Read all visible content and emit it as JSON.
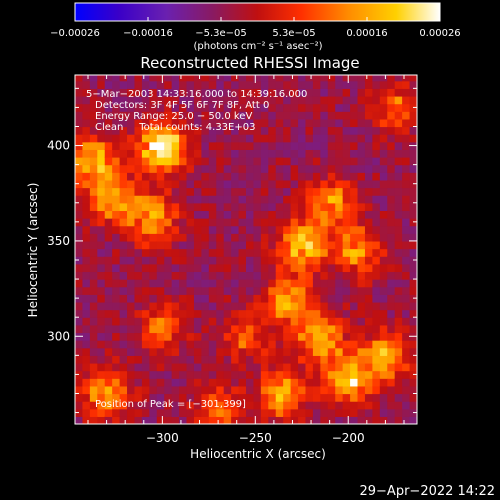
{
  "chart_data": {
    "type": "heatmap",
    "title": "Reconstructed RHESSI Image",
    "xlabel": "Heliocentric X (arcsec)",
    "ylabel": "Heliocentric Y (arcsec)",
    "xlim": [
      -347,
      -163
    ],
    "ylim": [
      254,
      437
    ],
    "x_ticks": [
      -300,
      -250,
      -200
    ],
    "y_ticks": [
      300,
      350,
      400
    ],
    "x_tick_labels": [
      "−300",
      "−250",
      "−200"
    ],
    "y_tick_labels": [
      "300",
      "350",
      "400"
    ],
    "colorbar": {
      "min": -0.00026,
      "max": 0.00026,
      "tick_labels": [
        "−0.00026",
        "−0.00016",
        "−5.3e−05",
        "5.3e−05",
        "0.00016",
        "0.00026"
      ],
      "unit_line": "(photons cm⁻² s⁻¹ asec⁻²)",
      "colors": [
        "#0000ff",
        "#3a00c8",
        "#6a20b0",
        "#8a1a60",
        "#c01010",
        "#ff3000",
        "#ff8c00",
        "#ffd000",
        "#ffffff"
      ]
    },
    "hot_regions": [
      {
        "x": -300,
        "y": 399,
        "value": 0.00026
      },
      {
        "x": -338,
        "y": 392,
        "value": 0.00018
      },
      {
        "x": -326,
        "y": 372,
        "value": 0.00016
      },
      {
        "x": -305,
        "y": 362,
        "value": 0.00015
      },
      {
        "x": -225,
        "y": 348,
        "value": 0.00019
      },
      {
        "x": -210,
        "y": 370,
        "value": 0.00014
      },
      {
        "x": -195,
        "y": 345,
        "value": 0.00014
      },
      {
        "x": -232,
        "y": 318,
        "value": 0.00017
      },
      {
        "x": -215,
        "y": 300,
        "value": 0.00016
      },
      {
        "x": -200,
        "y": 278,
        "value": 0.00018
      },
      {
        "x": -180,
        "y": 290,
        "value": 0.00015
      },
      {
        "x": -235,
        "y": 270,
        "value": 0.00015
      },
      {
        "x": -330,
        "y": 270,
        "value": 0.00015
      },
      {
        "x": -300,
        "y": 305,
        "value": 0.0001
      },
      {
        "x": -270,
        "y": 262,
        "value": 0.00011
      },
      {
        "x": -175,
        "y": 420,
        "value": 0.0001
      },
      {
        "x": -255,
        "y": 300,
        "value": 8e-05
      }
    ]
  },
  "info": {
    "time_range": "5−Mar−2003 14:33:16.000 to 14:39:16.000",
    "detectors": "Detectors: 3F 4F 5F 6F 7F 8F, Att 0",
    "energy": "Energy Range: 25.0 − 50.0 keV",
    "method": "Clean     Total counts: 4.33E+03",
    "peak": "Position of Peak = [−301,399]"
  },
  "footer_date": "29−Apr−2022 14:22"
}
